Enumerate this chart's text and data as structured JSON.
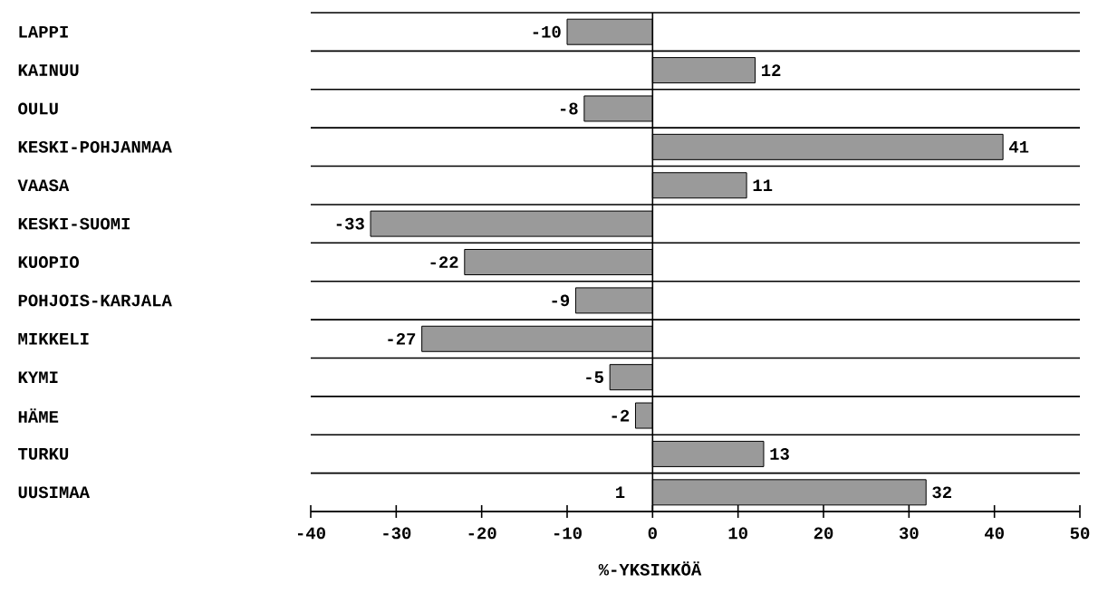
{
  "chart_data": {
    "type": "bar",
    "orientation": "horizontal",
    "xlabel": "%-YKSIKKÖÄ",
    "categories": [
      "LAPPI",
      "KAINUU",
      "OULU",
      "KESKI-POHJANMAA",
      "VAASA",
      "KESKI-SUOMI",
      "KUOPIO",
      "POHJOIS-KARJALA",
      "MIKKELI",
      "KYMI",
      "HÄME",
      "TURKU",
      "UUSIMAA"
    ],
    "values": [
      -10,
      12,
      -8,
      41,
      11,
      -33,
      -22,
      -9,
      -27,
      -5,
      -2,
      13,
      32
    ],
    "color": "#9a9a9a",
    "data_labels": true,
    "xlim": [
      -40,
      50
    ],
    "xticks": [
      -40,
      -30,
      -20,
      -10,
      0,
      10,
      20,
      30,
      40,
      50
    ],
    "annotations": [
      "1"
    ]
  }
}
